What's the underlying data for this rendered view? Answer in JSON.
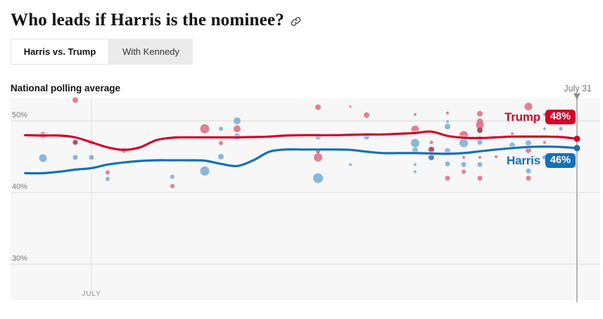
{
  "page": {
    "title": "Who leads if Harris is the nominee?"
  },
  "tabs": [
    {
      "label": "Harris vs. Trump",
      "active": true
    },
    {
      "label": "With Kennedy",
      "active": false
    }
  ],
  "chart": {
    "title": "National polling average",
    "date_marker": "July 31"
  },
  "series": {
    "trump": {
      "name": "Trump",
      "value_label": "48%",
      "color": "#d0072a"
    },
    "harris": {
      "name": "Harris",
      "value_label": "46%",
      "color": "#1670b8"
    }
  },
  "chart_data": {
    "type": "line",
    "title": "National polling average",
    "x_axis": {
      "unit": "days of July 2024",
      "tick_label": "JULY",
      "tick_day": 0,
      "marker_label": "July 31",
      "marker_day": 30,
      "domain": [
        -4.1,
        31.4
      ],
      "grid": "partial"
    },
    "y_axis": {
      "unit": "percent",
      "ticks": [
        {
          "label": "50%",
          "value": 50
        },
        {
          "label": "40%",
          "value": 40
        },
        {
          "label": "30%",
          "value": 30
        }
      ],
      "domain": [
        25.0,
        53.2
      ],
      "grid": true
    },
    "legend_position": "end-of-line labels",
    "trend_series": [
      {
        "name": "Trump",
        "color": "#d0072a",
        "end_value_label": "48%",
        "points": [
          [
            -4.1,
            48.0
          ],
          [
            -3,
            47.95
          ],
          [
            -2,
            47.95
          ],
          [
            -1,
            47.7
          ],
          [
            0,
            47.0
          ],
          [
            1,
            46.3
          ],
          [
            2,
            45.95
          ],
          [
            3,
            46.3
          ],
          [
            4,
            47.3
          ],
          [
            5,
            47.65
          ],
          [
            6,
            47.7
          ],
          [
            7,
            47.7
          ],
          [
            8,
            47.7
          ],
          [
            9,
            47.7
          ],
          [
            10,
            47.75
          ],
          [
            11,
            47.8
          ],
          [
            12,
            47.95
          ],
          [
            13,
            48.0
          ],
          [
            14,
            48.0
          ],
          [
            15,
            48.0
          ],
          [
            16,
            48.05
          ],
          [
            17,
            48.1
          ],
          [
            18,
            48.1
          ],
          [
            19,
            48.2
          ],
          [
            20,
            48.3
          ],
          [
            21,
            48.5
          ],
          [
            22,
            47.9
          ],
          [
            23,
            47.65
          ],
          [
            24,
            47.6
          ],
          [
            25,
            47.7
          ],
          [
            26,
            47.8
          ],
          [
            27,
            47.8
          ],
          [
            28,
            47.8
          ],
          [
            29,
            47.75
          ],
          [
            30,
            47.5
          ]
        ]
      },
      {
        "name": "Harris",
        "color": "#1670b8",
        "end_value_label": "46%",
        "points": [
          [
            -4.1,
            42.7
          ],
          [
            -3,
            42.7
          ],
          [
            -2,
            42.9
          ],
          [
            -1,
            43.2
          ],
          [
            0,
            43.4
          ],
          [
            1,
            43.9
          ],
          [
            2,
            44.2
          ],
          [
            3,
            44.4
          ],
          [
            4,
            44.5
          ],
          [
            5,
            44.5
          ],
          [
            6,
            44.5
          ],
          [
            7,
            44.45
          ],
          [
            8,
            44.0
          ],
          [
            9,
            43.7
          ],
          [
            10,
            44.5
          ],
          [
            11,
            45.7
          ],
          [
            12,
            46.0
          ],
          [
            13,
            46.0
          ],
          [
            14,
            46.0
          ],
          [
            15,
            46.0
          ],
          [
            16,
            45.95
          ],
          [
            17,
            45.7
          ],
          [
            18,
            45.5
          ],
          [
            19,
            45.5
          ],
          [
            20,
            45.5
          ],
          [
            21,
            45.45
          ],
          [
            22,
            45.4
          ],
          [
            23,
            45.5
          ],
          [
            24,
            45.75
          ],
          [
            25,
            46.0
          ],
          [
            26,
            46.2
          ],
          [
            27,
            46.35
          ],
          [
            28,
            46.4
          ],
          [
            29,
            46.35
          ],
          [
            30,
            46.2
          ]
        ]
      }
    ],
    "poll_dot_format": [
      "day",
      "pct",
      "color_key",
      "radius_px"
    ],
    "poll_dots": [
      [
        -1,
        52.9,
        "R",
        4
      ],
      [
        -3,
        48.0,
        "R",
        4.5
      ],
      [
        -1,
        47.0,
        "Rd",
        3.5
      ],
      [
        0,
        47.0,
        "R",
        3.5
      ],
      [
        -3,
        44.8,
        "B",
        5.5
      ],
      [
        -1,
        44.9,
        "B",
        3.5
      ],
      [
        0,
        44.9,
        "B",
        3.5
      ],
      [
        1,
        42.8,
        "R",
        3
      ],
      [
        1,
        41.9,
        "B",
        3
      ],
      [
        2,
        45.9,
        "Rd",
        3.5
      ],
      [
        5,
        42.2,
        "B",
        3
      ],
      [
        5,
        40.9,
        "R",
        3
      ],
      [
        7,
        48.9,
        "R",
        6.5
      ],
      [
        8,
        48.9,
        "B",
        3
      ],
      [
        9,
        50.0,
        "B",
        5
      ],
      [
        9,
        48.9,
        "R",
        5
      ],
      [
        9,
        47.8,
        "B",
        4.5
      ],
      [
        8,
        46.9,
        "R",
        3
      ],
      [
        8,
        45.0,
        "B",
        4
      ],
      [
        7,
        43.0,
        "B",
        6.5
      ],
      [
        14,
        51.9,
        "R",
        4
      ],
      [
        16,
        52.0,
        "R",
        1.5
      ],
      [
        17,
        50.8,
        "R",
        4
      ],
      [
        14,
        47.8,
        "B",
        4
      ],
      [
        17,
        47.8,
        "B",
        4
      ],
      [
        14,
        45.8,
        "Rd",
        3
      ],
      [
        14,
        44.9,
        "R",
        6
      ],
      [
        16,
        43.9,
        "B",
        2
      ],
      [
        14,
        42.0,
        "B",
        7
      ],
      [
        20,
        50.9,
        "R",
        2
      ],
      [
        20,
        48.8,
        "R",
        5.5
      ],
      [
        20,
        46.9,
        "B",
        6
      ],
      [
        20,
        45.9,
        "B",
        4
      ],
      [
        20,
        43.9,
        "B",
        2
      ],
      [
        20,
        42.9,
        "B",
        2
      ],
      [
        21,
        47.0,
        "R",
        2.5
      ],
      [
        21,
        46.0,
        "Rd",
        4
      ],
      [
        21,
        44.9,
        "Bd",
        4
      ],
      [
        22,
        51.1,
        "R",
        2
      ],
      [
        22,
        49.9,
        "B",
        2
      ],
      [
        22,
        49.2,
        "B",
        4
      ],
      [
        22,
        45.8,
        "B",
        4
      ],
      [
        22,
        44.0,
        "B",
        3.5
      ],
      [
        22,
        42.0,
        "R",
        3.5
      ],
      [
        23,
        48.0,
        "R",
        6
      ],
      [
        23,
        46.9,
        "B",
        6
      ],
      [
        23,
        44.9,
        "R",
        2
      ],
      [
        23,
        43.9,
        "B",
        3.5
      ],
      [
        23,
        42.9,
        "R",
        3
      ],
      [
        24,
        51.0,
        "R",
        4
      ],
      [
        24,
        49.9,
        "R",
        4.5
      ],
      [
        24,
        49.4,
        "R",
        5.5
      ],
      [
        24,
        48.7,
        "Rd",
        4
      ],
      [
        24,
        47.6,
        "R",
        3.5
      ],
      [
        24,
        47.0,
        "B",
        3.5
      ],
      [
        24,
        44.9,
        "R",
        2
      ],
      [
        24,
        43.9,
        "B",
        3.5
      ],
      [
        24,
        42.0,
        "R",
        3.5
      ],
      [
        25,
        45.0,
        "R",
        2
      ],
      [
        26,
        48.2,
        "R",
        2
      ],
      [
        26,
        46.6,
        "B",
        4
      ],
      [
        27,
        52.0,
        "R",
        5.5
      ],
      [
        27,
        46.9,
        "B",
        4
      ],
      [
        27,
        45.9,
        "R",
        4
      ],
      [
        27,
        43.0,
        "B",
        3.5
      ],
      [
        27,
        42.0,
        "R",
        3.5
      ],
      [
        28,
        50.9,
        "R",
        2
      ],
      [
        28,
        48.9,
        "B",
        2
      ],
      [
        28,
        47.0,
        "R",
        2
      ],
      [
        28,
        44.9,
        "B",
        3
      ],
      [
        29,
        48.9,
        "B",
        2.5
      ]
    ],
    "colors": {
      "R": "#e07187",
      "Rd": "#9c4058",
      "B": "#7dafd8",
      "Bd": "#3d79af",
      "grid": "#d9d9d9",
      "month_grid": "#dedede",
      "axis_text": "#757575",
      "month_text": "#8f8f8f",
      "marker_line": "#b5b5b5",
      "marker_arrow": "#8e8e8e",
      "plot_bg": "#f7f7f7"
    }
  }
}
